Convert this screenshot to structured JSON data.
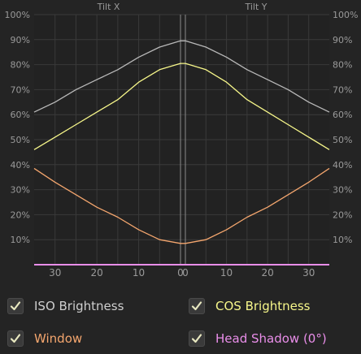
{
  "colors": {
    "background": "#242424",
    "plot_background": "#222222",
    "grid": "#3a3a3a",
    "axis_text": "#9a9a9a",
    "center_line": "#8a8a8a",
    "iso": "#b9b9b9",
    "cos": "#f7f78a",
    "window": "#f4a66e",
    "head_shadow": "#e98ee9"
  },
  "chart_data": {
    "type": "line",
    "panels": [
      "Tilt X",
      "Tilt Y"
    ],
    "x_ticks_left": [
      30,
      20,
      10,
      0
    ],
    "x_ticks_right": [
      0,
      10,
      20,
      30
    ],
    "xlim_per_panel": [
      0,
      35
    ],
    "ylim": [
      0,
      100
    ],
    "y_ticks": [
      "10%",
      "20%",
      "30%",
      "40%",
      "50%",
      "60%",
      "70%",
      "80%",
      "90%",
      "100%"
    ],
    "x_angle_deg": [
      0,
      5,
      10,
      15,
      20,
      25,
      30,
      35
    ],
    "series": [
      {
        "name": "ISO Brightness",
        "color_key": "iso",
        "values": [
          89.5,
          87,
          83,
          78,
          74,
          70,
          65,
          61
        ]
      },
      {
        "name": "COS Brightness",
        "color_key": "cos",
        "values": [
          80.5,
          78,
          73,
          66,
          61,
          56,
          51,
          46
        ]
      },
      {
        "name": "Window",
        "color_key": "window",
        "values": [
          8.5,
          10,
          14,
          19,
          23,
          28,
          33,
          38.5
        ]
      },
      {
        "name": "Head Shadow (0°)",
        "color_key": "head_shadow",
        "values": [
          0,
          0,
          0,
          0,
          0,
          0,
          0,
          0
        ]
      }
    ]
  },
  "legend": {
    "iso": {
      "label": "ISO Brightness",
      "checked": true
    },
    "cos": {
      "label": "COS Brightness",
      "checked": true
    },
    "window": {
      "label": "Window",
      "checked": true
    },
    "head_shadow": {
      "label": "Head Shadow (0°)",
      "checked": true
    }
  }
}
